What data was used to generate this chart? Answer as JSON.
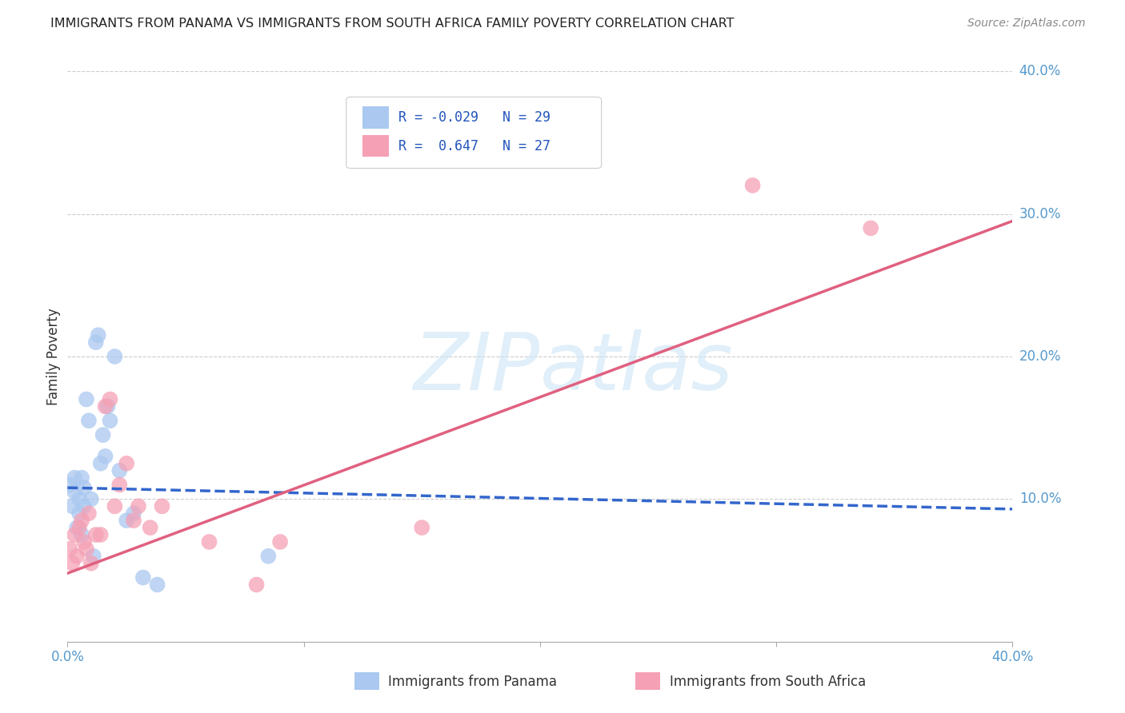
{
  "title": "IMMIGRANTS FROM PANAMA VS IMMIGRANTS FROM SOUTH AFRICA FAMILY POVERTY CORRELATION CHART",
  "source": "Source: ZipAtlas.com",
  "ylabel": "Family Poverty",
  "xlim": [
    0.0,
    0.4
  ],
  "ylim": [
    0.0,
    0.4
  ],
  "yticks": [
    0.0,
    0.1,
    0.2,
    0.3,
    0.4
  ],
  "ytick_labels": [
    "",
    "10.0%",
    "20.0%",
    "30.0%",
    "40.0%"
  ],
  "legend_r_panama": "-0.029",
  "legend_n_panama": "29",
  "legend_r_sa": "0.647",
  "legend_n_sa": "27",
  "panama_color": "#aac8f0",
  "sa_color": "#f5a0b5",
  "panama_line_color": "#3366cc",
  "sa_line_color": "#e06080",
  "grid_color": "#cccccc",
  "background_color": "#ffffff",
  "panama_points_x": [
    0.001,
    0.002,
    0.003,
    0.003,
    0.004,
    0.005,
    0.005,
    0.006,
    0.006,
    0.007,
    0.007,
    0.008,
    0.009,
    0.01,
    0.011,
    0.012,
    0.013,
    0.014,
    0.015,
    0.016,
    0.017,
    0.018,
    0.02,
    0.022,
    0.025,
    0.028,
    0.032,
    0.038,
    0.085
  ],
  "panama_points_y": [
    0.11,
    0.095,
    0.115,
    0.105,
    0.08,
    0.1,
    0.09,
    0.115,
    0.075,
    0.108,
    0.095,
    0.17,
    0.155,
    0.1,
    0.06,
    0.21,
    0.215,
    0.125,
    0.145,
    0.13,
    0.165,
    0.155,
    0.2,
    0.12,
    0.085,
    0.09,
    0.045,
    0.04,
    0.06
  ],
  "sa_points_x": [
    0.001,
    0.002,
    0.003,
    0.004,
    0.005,
    0.006,
    0.007,
    0.008,
    0.009,
    0.01,
    0.012,
    0.014,
    0.016,
    0.018,
    0.02,
    0.022,
    0.025,
    0.028,
    0.03,
    0.035,
    0.04,
    0.06,
    0.08,
    0.09,
    0.15,
    0.29,
    0.34
  ],
  "sa_points_y": [
    0.065,
    0.055,
    0.075,
    0.06,
    0.08,
    0.085,
    0.07,
    0.065,
    0.09,
    0.055,
    0.075,
    0.075,
    0.165,
    0.17,
    0.095,
    0.11,
    0.125,
    0.085,
    0.095,
    0.08,
    0.095,
    0.07,
    0.04,
    0.07,
    0.08,
    0.32,
    0.29
  ],
  "panama_line_x": [
    0.0,
    0.4
  ],
  "panama_line_y": [
    0.108,
    0.093
  ],
  "sa_line_x": [
    0.0,
    0.4
  ],
  "sa_line_y": [
    0.048,
    0.295
  ]
}
